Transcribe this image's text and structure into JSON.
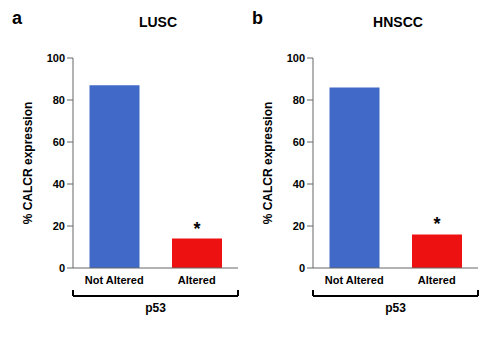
{
  "chart_data": [
    {
      "type": "bar",
      "panel_label": "a",
      "title": "LUSC",
      "categories": [
        "Not Altered",
        "Altered"
      ],
      "values": [
        87,
        14
      ],
      "colors": [
        "#4169C8",
        "#EE1111"
      ],
      "ylabel": "% CALCR expression",
      "xlabel": "p53",
      "ylim": [
        0,
        100
      ],
      "yticks": [
        0,
        20,
        40,
        60,
        80,
        100
      ],
      "annotations": [
        {
          "text": "*",
          "category": "Altered"
        }
      ]
    },
    {
      "type": "bar",
      "panel_label": "b",
      "title": "HNSCC",
      "categories": [
        "Not Altered",
        "Altered"
      ],
      "values": [
        86,
        16
      ],
      "colors": [
        "#4169C8",
        "#EE1111"
      ],
      "ylabel": "% CALCR expression",
      "xlabel": "p53",
      "ylim": [
        0,
        100
      ],
      "yticks": [
        0,
        20,
        40,
        60,
        80,
        100
      ],
      "annotations": [
        {
          "text": "*",
          "category": "Altered"
        }
      ]
    }
  ]
}
